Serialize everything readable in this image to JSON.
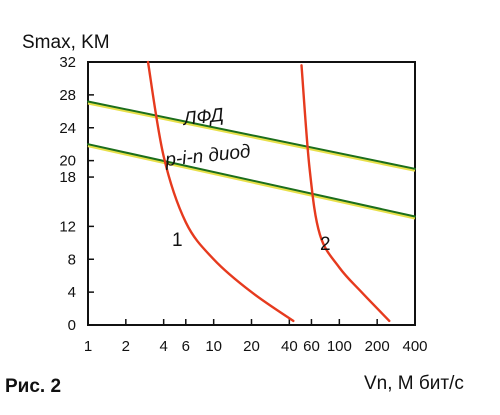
{
  "caption": "Рис. 2",
  "chart_data": {
    "type": "line",
    "ylabel": "Smax, KM",
    "xlabel": "Vn, М бит/с",
    "x_scale": "log",
    "x_ticks": [
      "1",
      "2",
      "4",
      "6",
      "10",
      "20",
      "40",
      "60",
      "100",
      "200",
      "400"
    ],
    "x_tick_values": [
      1,
      2,
      4,
      6,
      10,
      20,
      40,
      60,
      100,
      200,
      400
    ],
    "y_ticks": [
      "0",
      "4",
      "8",
      "12",
      "18",
      "20",
      "24",
      "28",
      "32"
    ],
    "y_tick_values": [
      0,
      4,
      8,
      12,
      18,
      20,
      24,
      28,
      32
    ],
    "xlim": [
      1,
      400
    ],
    "ylim": [
      0,
      32
    ],
    "grid": false,
    "series": [
      {
        "name": "ЛФД",
        "color": "#1c6e1c",
        "x": [
          1,
          400
        ],
        "y": [
          27.2,
          19.0
        ]
      },
      {
        "name": "p-i-n диод",
        "color": "#1c6e1c",
        "x": [
          1,
          400
        ],
        "y": [
          22.0,
          13.2
        ]
      },
      {
        "name": "1",
        "color": "#e63a1e",
        "x": [
          3,
          4,
          6,
          10,
          20,
          43
        ],
        "y": [
          32.0,
          20.5,
          12.5,
          8.0,
          4.0,
          0.5
        ]
      },
      {
        "name": "2",
        "color": "#e63a1e",
        "x": [
          50,
          58,
          70,
          100,
          150,
          250
        ],
        "y": [
          31.6,
          19.0,
          11.0,
          7.0,
          4.0,
          0.5
        ]
      }
    ],
    "annotations": [
      "ЛФД",
      "p-i-n диод"
    ]
  }
}
